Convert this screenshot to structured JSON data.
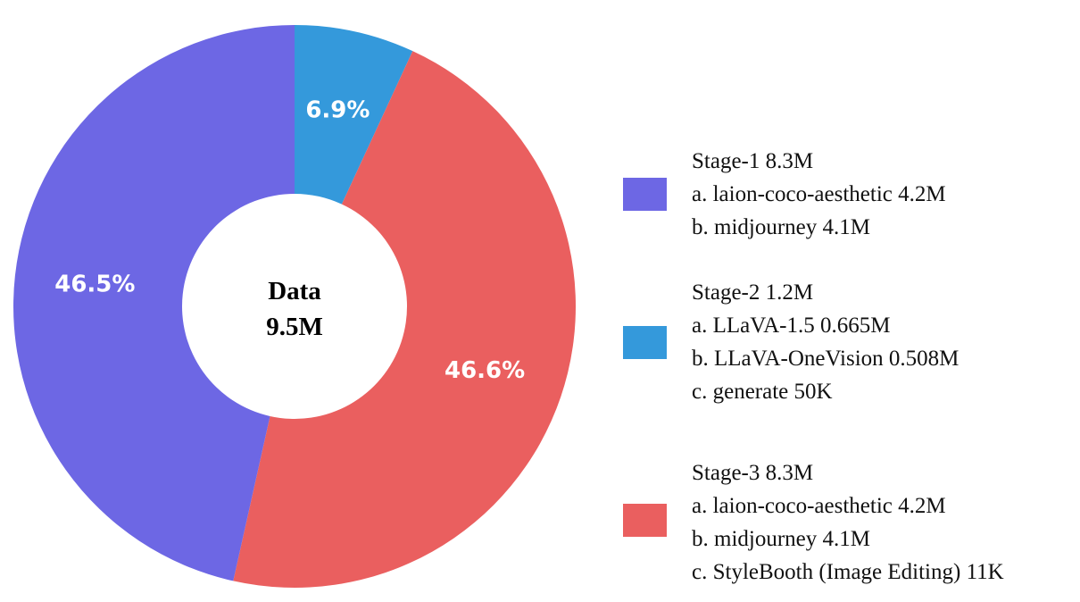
{
  "chart_data": {
    "type": "pie",
    "style": "donut",
    "center_label": [
      "Data",
      "9.5M"
    ],
    "slices": [
      {
        "label": "6.9%",
        "value": 6.9,
        "color": "#3499db"
      },
      {
        "label": "46.6%",
        "value": 46.6,
        "color": "#ea5f5f"
      },
      {
        "label": "46.5%",
        "value": 46.5,
        "color": "#6d67e4"
      }
    ],
    "legend": {
      "placement": "right",
      "entries": [
        {
          "color": "#6d67e4",
          "lines": [
            "Stage-1 8.3M",
            "a. laion-coco-aesthetic 4.2M",
            "b. midjourney  4.1M"
          ]
        },
        {
          "color": "#3499db",
          "lines": [
            "Stage-2 1.2M",
            "a. LLaVA-1.5 0.665M",
            "b. LLaVA-OneVision 0.508M",
            "c. generate 50K"
          ]
        },
        {
          "color": "#ea5f5f",
          "lines": [
            "Stage-3 8.3M",
            "a. laion-coco-aesthetic 4.2M",
            "b. midjourney  4.1M",
            "c. StyleBooth (Image Editing) 11K"
          ]
        }
      ]
    }
  }
}
